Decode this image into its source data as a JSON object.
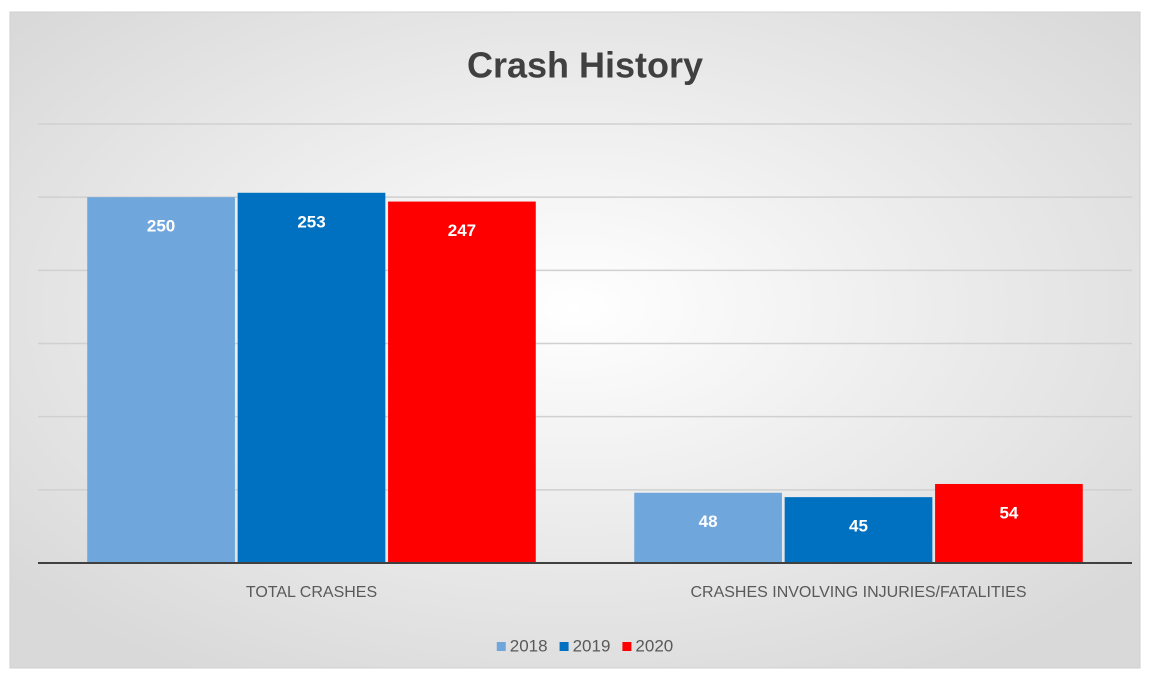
{
  "chart_data": {
    "type": "bar",
    "title": "Crash History",
    "categories": [
      "TOTAL CRASHES",
      "CRASHES INVOLVING INJURIES/FATALITIES"
    ],
    "series": [
      {
        "name": "2018",
        "color": "#6fa6dc",
        "values": [
          250,
          48
        ]
      },
      {
        "name": "2019",
        "color": "#0070c0",
        "values": [
          253,
          45
        ]
      },
      {
        "name": "2020",
        "color": "#ff0000",
        "values": [
          247,
          54
        ]
      }
    ],
    "ylim": [
      0,
      300
    ],
    "yticks": [
      0,
      50,
      100,
      150,
      200,
      250,
      300
    ],
    "grid": true,
    "show_tick_labels": false,
    "legend": "bottom"
  }
}
